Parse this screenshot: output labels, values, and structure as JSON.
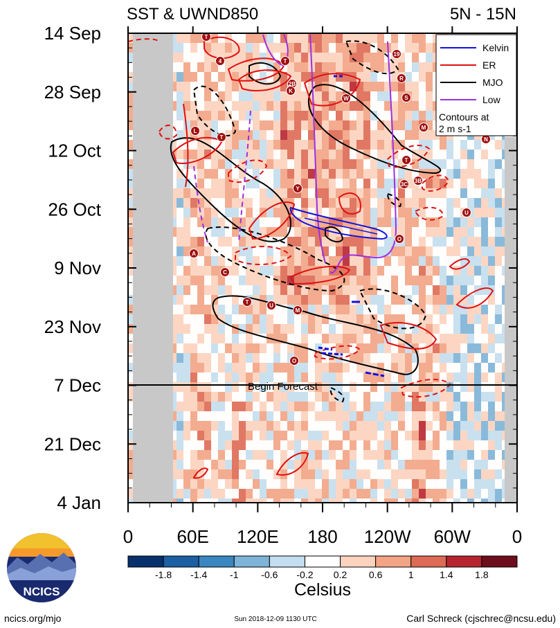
{
  "header": {
    "title_left": "SST & UWND850",
    "title_right": "5N - 15N"
  },
  "chart_data": {
    "type": "heatmap",
    "xlabel": "",
    "ylabel": "",
    "x_ticks": [
      {
        "label": "0",
        "lon": 0
      },
      {
        "label": "60E",
        "lon": 60
      },
      {
        "label": "120E",
        "lon": 120
      },
      {
        "label": "180",
        "lon": 180
      },
      {
        "label": "120W",
        "lon": 240
      },
      {
        "label": "60W",
        "lon": 300
      },
      {
        "label": "0",
        "lon": 360
      }
    ],
    "x_range": [
      0,
      360
    ],
    "y_ticks": [
      {
        "label": "14 Sep",
        "day": 0
      },
      {
        "label": "28 Sep",
        "day": 14
      },
      {
        "label": "12 Oct",
        "day": 28
      },
      {
        "label": "26 Oct",
        "day": 42
      },
      {
        "label": "9 Nov",
        "day": 56
      },
      {
        "label": "23 Nov",
        "day": 70
      },
      {
        "label": "7 Dec",
        "day": 84
      },
      {
        "label": "21 Dec",
        "day": 98
      },
      {
        "label": "4 Jan",
        "day": 112
      }
    ],
    "y_range": [
      0,
      112
    ],
    "forecast_start": {
      "day": 84,
      "label": "Begin Forecast"
    },
    "legend": {
      "position": "top-right",
      "entries": [
        {
          "name": "Kelvin",
          "color": "#1010e0"
        },
        {
          "name": "ER",
          "color": "#e01010"
        },
        {
          "name": "MJO",
          "color": "#000000"
        },
        {
          "name": "Low",
          "color": "#9b30e0"
        }
      ],
      "note_line1": "Contours at",
      "note_line2": "2 m s-1"
    },
    "colorbar": {
      "label": "Celsius",
      "tick_labels": [
        "-1.8",
        "-1.4",
        "-1",
        "-0.6",
        "-0.2",
        "0.2",
        "0.6",
        "1",
        "1.4",
        "1.8"
      ],
      "colors": [
        "#08306b",
        "#1c5fa2",
        "#3a86c0",
        "#7db4d8",
        "#c3def0",
        "#ffffff",
        "#fcd3bf",
        "#f2a485",
        "#dd6a55",
        "#b72531",
        "#6e0d1d"
      ]
    },
    "storm_symbols": [
      "T",
      "4",
      "T",
      "2B",
      "K",
      "W",
      "19",
      "R",
      "S",
      "M",
      "N",
      "L",
      "T",
      "Y",
      "T",
      "3B",
      "U",
      "O",
      "A",
      "C",
      "T",
      "U",
      "M",
      "O",
      "3C"
    ]
  },
  "footer": {
    "logo_text": "NCICS",
    "url": "ncics.org/mjo",
    "timestamp": "Sun 2018-12-09 1130 UTC",
    "author": "Carl Schreck (cjschrec@ncsu.edu)"
  },
  "colors": {
    "land": "#c8c8c8",
    "storm": "#a01010",
    "kelvin": "#1010e0",
    "er": "#e01010",
    "mjo": "#000000",
    "low": "#9b30e0"
  }
}
